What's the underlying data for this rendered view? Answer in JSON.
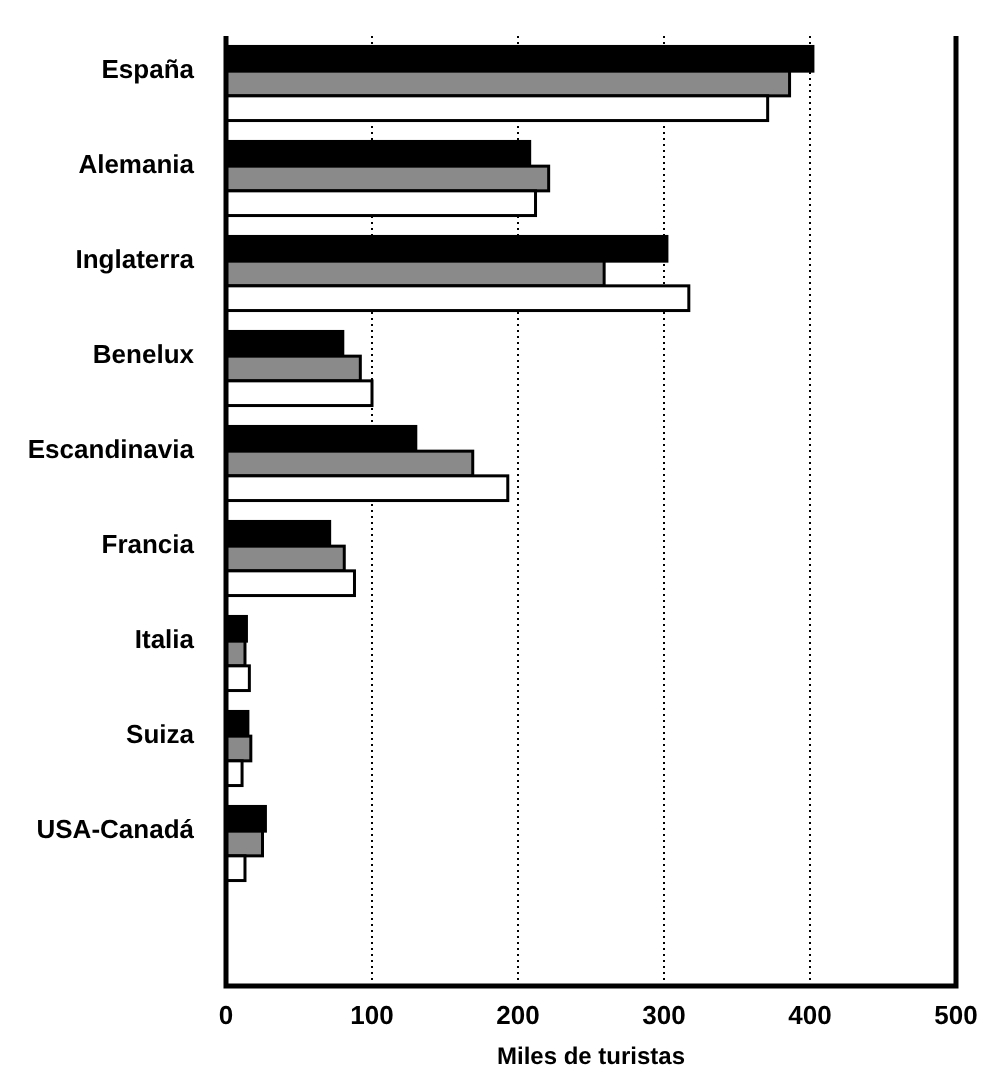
{
  "chart_data": {
    "type": "bar",
    "orientation": "horizontal",
    "xlabel": "Miles de turistas",
    "categories": [
      "España",
      "Alemania",
      "Inglaterra",
      "Benelux",
      "Escandinavia",
      "Francia",
      "Italia",
      "Suiza",
      "USA-Canadá",
      null
    ],
    "series": [
      {
        "color": "#000000",
        "values": [
          402,
          208,
          302,
          80,
          130,
          71,
          14,
          15,
          27,
          null
        ]
      },
      {
        "color": "#8a8a8a",
        "values": [
          386,
          221,
          259,
          92,
          169,
          81,
          13,
          17,
          25,
          null
        ]
      },
      {
        "color": "#ffffff",
        "values": [
          371,
          212,
          317,
          100,
          193,
          88,
          16,
          11,
          13,
          null
        ]
      }
    ],
    "xlim": [
      0,
      500
    ],
    "xticks": [
      0,
      100,
      200,
      300,
      400,
      500
    ],
    "grid": "x"
  }
}
